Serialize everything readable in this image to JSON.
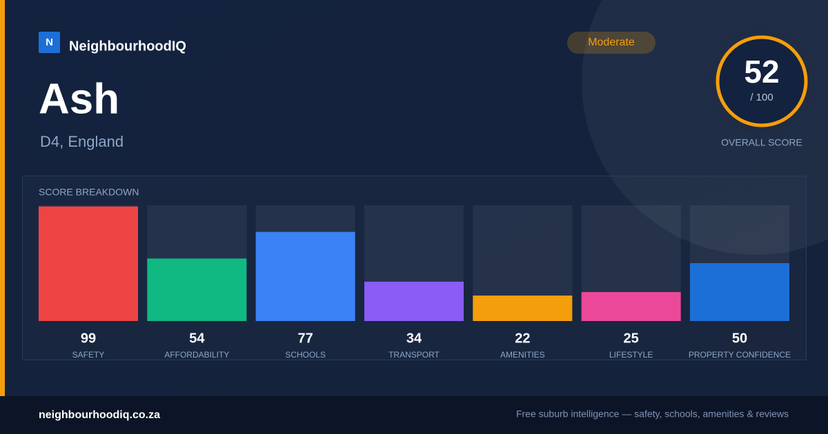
{
  "brand": {
    "logo": "N",
    "name": "NeighbourhoodIQ"
  },
  "badge": "Moderate",
  "place": {
    "name": "Ash",
    "region": "D4, England"
  },
  "overall": {
    "score": 52,
    "max_label": "/ 100",
    "caption": "OVERALL SCORE"
  },
  "breakdown": {
    "title": "SCORE BREAKDOWN",
    "ylim": [
      0,
      100
    ],
    "categories": [
      "SAFETY",
      "AFFORDABILITY",
      "SCHOOLS",
      "TRANSPORT",
      "AMENITIES",
      "LIFESTYLE",
      "PROPERTY CONFIDENCE"
    ],
    "values": [
      99,
      54,
      77,
      34,
      22,
      25,
      50
    ],
    "colors": [
      "#ef4444",
      "#10b981",
      "#3b82f6",
      "#8b5cf6",
      "#f59e0b",
      "#ec4899",
      "#1d6fd8"
    ]
  },
  "footer": {
    "site": "neighbourhoodiq.co.za",
    "tagline": "Free suburb intelligence — safety, schools, amenities & reviews"
  }
}
